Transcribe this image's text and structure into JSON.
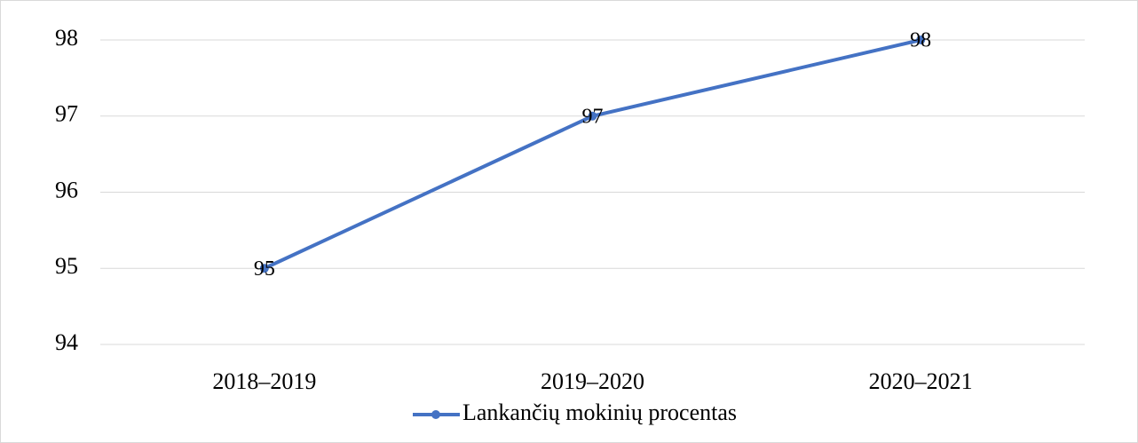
{
  "chart_data": {
    "type": "line",
    "categories": [
      "2018–2019",
      "2019–2020",
      "2020–2021"
    ],
    "series": [
      {
        "name": "Lankančių mokinių procentas",
        "color": "#4472c4",
        "values": [
          95,
          97,
          98
        ]
      }
    ],
    "ylim": [
      94,
      98
    ],
    "yticks": [
      94,
      95,
      96,
      97,
      98
    ],
    "grid": true,
    "legend": "bottom"
  }
}
